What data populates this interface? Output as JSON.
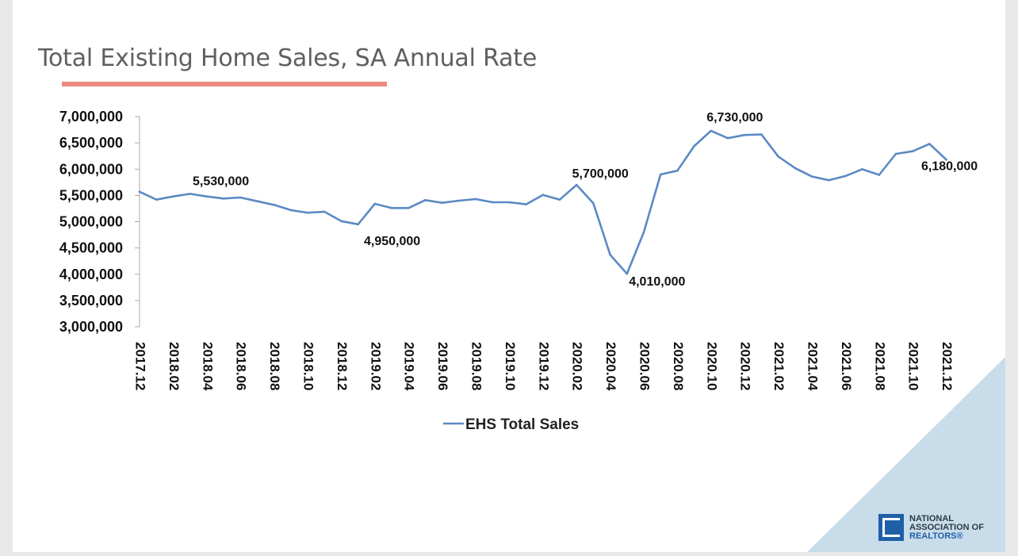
{
  "slide": {
    "title": "Total Existing Home Sales, SA Annual Rate",
    "accent_color": "#ec8a7e",
    "corner_color": "#c9dcea"
  },
  "logo": {
    "line1": "NATIONAL",
    "line2": "ASSOCIATION OF",
    "line3": "REALTORS®",
    "color": "#1f5fa8"
  },
  "chart_data": {
    "type": "line",
    "title": "Total Existing Home Sales, SA Annual Rate",
    "xlabel": "",
    "ylabel": "",
    "ylim": [
      3000000,
      7000000
    ],
    "y_ticks": [
      3000000,
      3500000,
      4000000,
      4500000,
      5000000,
      5500000,
      6000000,
      6500000,
      7000000
    ],
    "y_tick_labels": [
      "3,000,000",
      "3,500,000",
      "4,000,000",
      "4,500,000",
      "5,000,000",
      "5,500,000",
      "6,000,000",
      "6,500,000",
      "7,000,000"
    ],
    "x_tick_labels": [
      "2017.12",
      "2018.02",
      "2018.04",
      "2018.06",
      "2018.08",
      "2018.10",
      "2018.12",
      "2019.02",
      "2019.04",
      "2019.06",
      "2019.08",
      "2019.10",
      "2019.12",
      "2020.02",
      "2020.04",
      "2020.06",
      "2020.08",
      "2020.10",
      "2020.12",
      "2021.02",
      "2021.04",
      "2021.06",
      "2021.08",
      "2021.10",
      "2021.12"
    ],
    "grid": false,
    "legend_position": "bottom",
    "series": [
      {
        "name": "EHS Total Sales",
        "color": "#5b8ac3",
        "values": [
          5570000,
          5420000,
          5480000,
          5530000,
          5480000,
          5440000,
          5460000,
          5390000,
          5320000,
          5220000,
          5170000,
          5190000,
          5010000,
          4950000,
          5340000,
          5260000,
          5260000,
          5410000,
          5360000,
          5400000,
          5430000,
          5370000,
          5370000,
          5330000,
          5510000,
          5420000,
          5700000,
          5350000,
          4370000,
          4010000,
          4800000,
          5900000,
          5970000,
          6440000,
          6730000,
          6590000,
          6650000,
          6660000,
          6240000,
          6020000,
          5860000,
          5790000,
          5870000,
          6000000,
          5890000,
          6290000,
          6340000,
          6480000,
          6180000
        ]
      }
    ],
    "annotations": [
      {
        "index": 3,
        "label": "5,530,000",
        "placement": "above"
      },
      {
        "index": 13,
        "label": "4,950,000",
        "placement": "below"
      },
      {
        "index": 26,
        "label": "5,700,000",
        "placement": "above"
      },
      {
        "index": 29,
        "label": "4,010,000",
        "placement": "below"
      },
      {
        "index": 34,
        "label": "6,730,000",
        "placement": "above"
      },
      {
        "index": 48,
        "label": "6,180,000",
        "placement": "below"
      }
    ]
  }
}
